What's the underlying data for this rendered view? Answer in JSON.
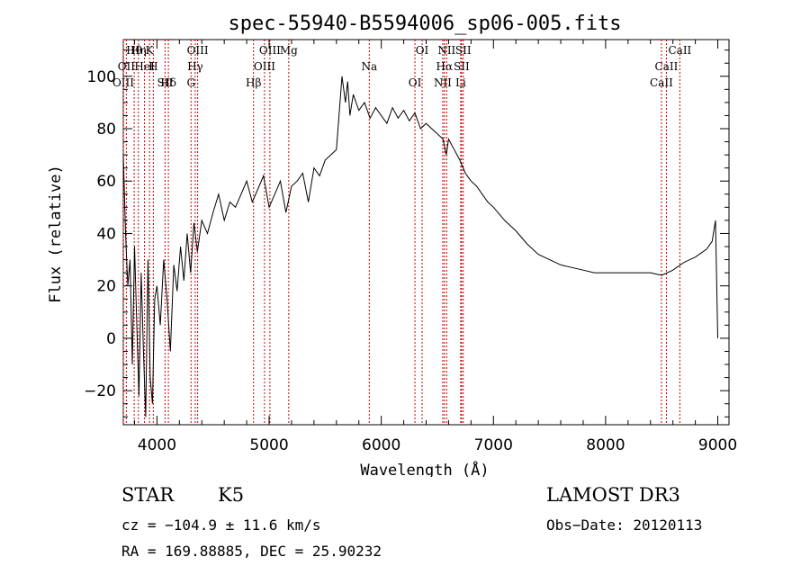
{
  "chart_data": {
    "type": "line",
    "title": "spec-55940-B5594006_sp06-005.fits",
    "xlabel": "Wavelength (Å)",
    "ylabel": "Flux (relative)",
    "xlim": [
      3700,
      9100
    ],
    "ylim": [
      -33,
      114
    ],
    "x_ticks": [
      4000,
      5000,
      6000,
      7000,
      8000,
      9000
    ],
    "y_ticks": [
      -20,
      0,
      20,
      40,
      60,
      80,
      100
    ],
    "series": [
      {
        "name": "spectrum",
        "x": [
          3700,
          3720,
          3740,
          3760,
          3780,
          3800,
          3820,
          3840,
          3860,
          3880,
          3900,
          3920,
          3940,
          3960,
          3980,
          4000,
          4030,
          4060,
          4090,
          4120,
          4150,
          4180,
          4210,
          4240,
          4270,
          4300,
          4330,
          4360,
          4400,
          4450,
          4500,
          4550,
          4600,
          4650,
          4700,
          4750,
          4800,
          4850,
          4900,
          4950,
          5000,
          5050,
          5100,
          5150,
          5200,
          5250,
          5300,
          5350,
          5400,
          5450,
          5500,
          5550,
          5600,
          5650,
          5680,
          5700,
          5720,
          5750,
          5800,
          5850,
          5900,
          5950,
          6000,
          6050,
          6100,
          6150,
          6200,
          6250,
          6300,
          6350,
          6400,
          6450,
          6500,
          6550,
          6580,
          6600,
          6650,
          6700,
          6750,
          6800,
          6850,
          6900,
          6950,
          7000,
          7100,
          7200,
          7300,
          7400,
          7500,
          7600,
          7700,
          7800,
          7900,
          8000,
          8100,
          8200,
          8300,
          8400,
          8500,
          8600,
          8700,
          8800,
          8900,
          8950,
          8980,
          9000
        ],
        "y": [
          70,
          40,
          20,
          30,
          -10,
          35,
          5,
          -22,
          25,
          -5,
          -30,
          30,
          -15,
          -25,
          15,
          20,
          5,
          30,
          15,
          -5,
          28,
          18,
          35,
          22,
          40,
          25,
          44,
          33,
          45,
          40,
          48,
          55,
          45,
          52,
          50,
          55,
          60,
          52,
          57,
          62,
          50,
          55,
          60,
          48,
          58,
          60,
          63,
          52,
          65,
          62,
          68,
          70,
          72,
          100,
          90,
          98,
          85,
          93,
          87,
          90,
          84,
          88,
          85,
          82,
          88,
          84,
          87,
          83,
          86,
          80,
          82,
          80,
          78,
          76,
          70,
          76,
          72,
          68,
          63,
          60,
          58,
          55,
          52,
          50,
          45,
          41,
          36,
          32,
          30,
          28,
          27,
          26,
          25,
          25,
          25,
          25,
          25,
          25,
          24,
          26,
          29,
          31,
          34,
          37,
          45,
          0
        ]
      }
    ],
    "lines": [
      {
        "name": "Hθ",
        "x": 3797
      },
      {
        "name": "OII",
        "x": 3727
      },
      {
        "name": "OIII",
        "x": 3700
      },
      {
        "name": "Hη",
        "x": 3835
      },
      {
        "name": "HeI",
        "x": 3889
      },
      {
        "name": "SII",
        "x": 4072
      },
      {
        "name": "K",
        "x": 3934
      },
      {
        "name": "H",
        "x": 3968
      },
      {
        "name": "Hδ",
        "x": 4102
      },
      {
        "name": "OIII",
        "x": 4363
      },
      {
        "name": "Hγ",
        "x": 4341
      },
      {
        "name": "G",
        "x": 4304
      },
      {
        "name": "OIII",
        "x": 5007
      },
      {
        "name": "OIII",
        "x": 4959
      },
      {
        "name": "Hβ",
        "x": 4861
      },
      {
        "name": "Mg",
        "x": 5175
      },
      {
        "name": "Na",
        "x": 5893
      },
      {
        "name": "OI",
        "x": 6300
      },
      {
        "name": "OI",
        "x": 6364
      },
      {
        "name": "Hα",
        "x": 6563
      },
      {
        "name": "NII",
        "x": 6548
      },
      {
        "name": "NII",
        "x": 6583
      },
      {
        "name": "SII",
        "x": 6716
      },
      {
        "name": "Li",
        "x": 6708
      },
      {
        "name": "SII",
        "x": 6731
      },
      {
        "name": "CaII",
        "x": 8542
      },
      {
        "name": "CaII",
        "x": 8498
      },
      {
        "name": "CaII",
        "x": 8662
      }
    ]
  },
  "info": {
    "object_class": "STAR",
    "subclass": "K5",
    "survey": "LAMOST DR3",
    "velocity": "cz = −104.9 ± 11.6 km/s",
    "obs_date": "Obs−Date: 20120113",
    "coords": "RA = 169.88885, DEC =  25.90232"
  },
  "colors": {
    "spectrum": "#000000",
    "emission_lines": "#cc0000"
  }
}
